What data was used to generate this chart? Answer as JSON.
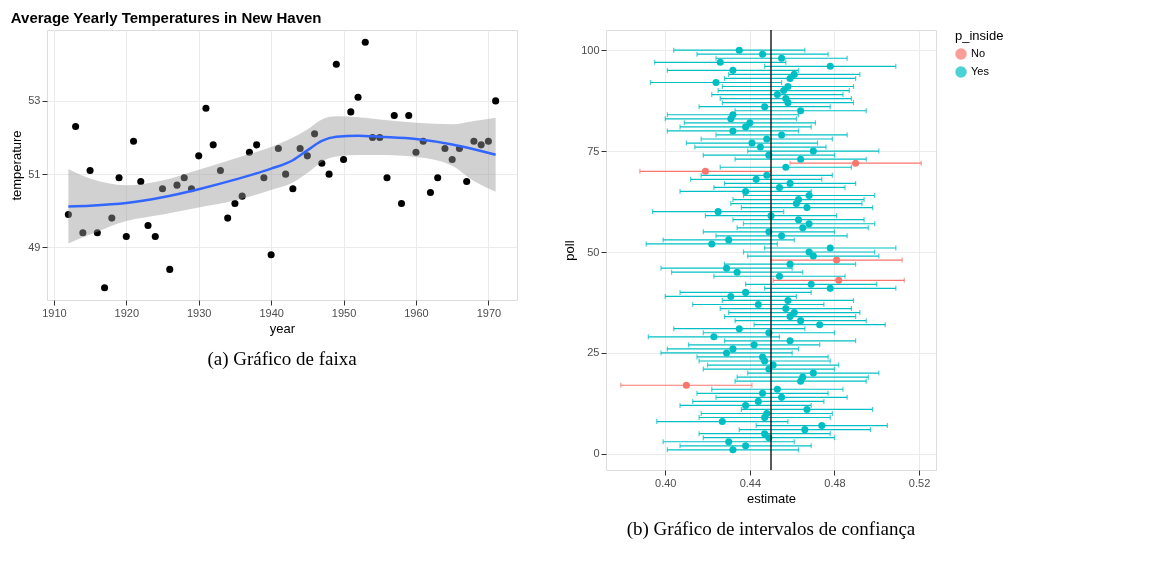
{
  "chart_data": [
    {
      "type": "scatter",
      "title": "Average Yearly Temperatures in New Haven",
      "xlabel": "year",
      "ylabel": "temperature",
      "xlim": [
        1909.05,
        1973.95
      ],
      "ylim": [
        47.565,
        54.935
      ],
      "xticks": [
        1910,
        1920,
        1930,
        1940,
        1950,
        1960,
        1970
      ],
      "yticks": [
        49,
        51,
        53
      ],
      "grid": true,
      "marker": "circle",
      "annotations": [
        "(a) Gráfico de faixa"
      ],
      "series": [
        {
          "type": "scatter",
          "color": "#000000",
          "x": [
            1912,
            1913,
            1914,
            1915,
            1916,
            1917,
            1918,
            1919,
            1920,
            1921,
            1922,
            1923,
            1924,
            1925,
            1926,
            1927,
            1928,
            1929,
            1930,
            1931,
            1932,
            1933,
            1934,
            1935,
            1936,
            1937,
            1938,
            1939,
            1940,
            1941,
            1942,
            1943,
            1944,
            1945,
            1946,
            1947,
            1948,
            1949,
            1950,
            1951,
            1952,
            1953,
            1954,
            1955,
            1956,
            1957,
            1958,
            1959,
            1960,
            1961,
            1962,
            1963,
            1964,
            1965,
            1966,
            1967,
            1968,
            1969,
            1970,
            1971
          ],
          "values": [
            49.9,
            52.3,
            49.4,
            51.1,
            49.4,
            47.9,
            49.8,
            50.9,
            49.3,
            51.9,
            50.8,
            49.6,
            49.3,
            50.6,
            48.4,
            50.7,
            50.9,
            50.6,
            51.5,
            52.8,
            51.8,
            51.1,
            49.8,
            50.2,
            50.4,
            51.6,
            51.8,
            50.9,
            48.8,
            51.7,
            51.0,
            50.6,
            51.7,
            51.5,
            52.1,
            51.3,
            51.0,
            54.0,
            51.4,
            52.7,
            53.1,
            54.6,
            52.0,
            52.0,
            50.9,
            52.6,
            50.2,
            52.6,
            51.6,
            51.9,
            50.5,
            50.9,
            51.7,
            51.4,
            51.7,
            50.8,
            51.9,
            51.8,
            51.9,
            53.0
          ]
        },
        {
          "type": "line",
          "marker": "none",
          "color": "#3366ff",
          "x": [
            1912,
            1915,
            1920,
            1925,
            1930,
            1935,
            1940,
            1943,
            1945,
            1947,
            1949,
            1952,
            1955,
            1960,
            1965,
            1968,
            1971
          ],
          "values": [
            50.12,
            50.14,
            50.21,
            50.37,
            50.59,
            50.85,
            51.15,
            51.38,
            51.65,
            51.91,
            52.02,
            52.05,
            52.02,
            51.96,
            51.81,
            51.68,
            51.53
          ],
          "lower": [
            49.11,
            49.35,
            49.72,
            49.9,
            50.09,
            50.28,
            50.57,
            50.77,
            51.03,
            51.34,
            51.48,
            51.52,
            51.52,
            51.47,
            51.23,
            50.81,
            50.52
          ],
          "upper": [
            51.14,
            50.88,
            50.7,
            50.83,
            51.12,
            51.43,
            51.74,
            52.0,
            52.22,
            52.49,
            52.58,
            52.55,
            52.49,
            52.4,
            52.36,
            52.45,
            52.54
          ]
        }
      ]
    },
    {
      "type": "scatter",
      "xlabel": "estimate",
      "ylabel": "poll",
      "xlim": [
        0.372,
        0.528
      ],
      "ylim": [
        -4,
        105
      ],
      "xticks": [
        {
          "value": 0.4,
          "label": "0.40"
        },
        0.44,
        0.48,
        0.52
      ],
      "yticks": [
        0,
        25,
        50,
        75,
        100
      ],
      "grid": true,
      "marker": "circle",
      "legend": "right",
      "legend_title": "p_inside",
      "annotations": [
        "(b) Gráfico de intervalos de confiança"
      ],
      "ref_lines": [
        {
          "axis": "x",
          "value": 0.45,
          "color": "#000000"
        }
      ],
      "series": [
        {
          "name": "No",
          "color": "#f8766d",
          "x": [
            0.41,
            0.482,
            0.481,
            0.419,
            0.49
          ],
          "values": [
            17,
            43,
            48,
            70,
            72
          ],
          "xerrors": [
            0.031,
            0.031,
            0.031,
            0.031,
            0.031
          ]
        },
        {
          "name": "Yes",
          "color": "#00bfc4",
          "x": [
            0.432,
            0.438,
            0.43,
            0.449,
            0.447,
            0.466,
            0.474,
            0.427,
            0.447,
            0.448,
            0.467,
            0.438,
            0.444,
            0.455,
            0.446,
            0.453,
            0.464,
            0.465,
            0.47,
            0.449,
            0.451,
            0.447,
            0.446,
            0.429,
            0.432,
            0.442,
            0.459,
            0.423,
            0.449,
            0.435,
            0.473,
            0.464,
            0.459,
            0.461,
            0.457,
            0.444,
            0.458,
            0.431,
            0.438,
            0.478,
            0.469,
            0.454,
            0.434,
            0.429,
            0.459,
            0.47,
            0.468,
            0.478,
            0.422,
            0.43,
            0.455,
            0.449,
            0.465,
            0.468,
            0.463,
            0.45,
            0.425,
            0.467,
            0.462,
            0.463,
            0.468,
            0.438,
            0.454,
            0.459,
            0.443,
            0.448,
            0.457,
            0.464,
            0.449,
            0.47,
            0.445,
            0.441,
            0.448,
            0.455,
            0.432,
            0.438,
            0.44,
            0.431,
            0.432,
            0.464,
            0.447,
            0.458,
            0.457,
            0.453,
            0.456,
            0.458,
            0.424,
            0.459,
            0.461,
            0.432,
            0.478,
            0.426,
            0.455,
            0.446,
            0.435
          ],
          "values": [
            1,
            2,
            3,
            4,
            5,
            6,
            7,
            8,
            9,
            10,
            11,
            12,
            13,
            14,
            15,
            16,
            18,
            19,
            20,
            21,
            22,
            23,
            24,
            25,
            26,
            27,
            28,
            29,
            30,
            31,
            32,
            33,
            34,
            35,
            36,
            37,
            38,
            39,
            40,
            41,
            42,
            44,
            45,
            46,
            47,
            49,
            50,
            51,
            52,
            53,
            54,
            55,
            56,
            57,
            58,
            59,
            60,
            61,
            62,
            63,
            64,
            65,
            66,
            67,
            68,
            69,
            71,
            73,
            74,
            75,
            76,
            77,
            78,
            79,
            80,
            81,
            82,
            83,
            84,
            85,
            86,
            87,
            88,
            89,
            90,
            91,
            92,
            93,
            94,
            95,
            96,
            97,
            98,
            99,
            100
          ],
          "xerrors": [
            0.031,
            0.031,
            0.031,
            0.031,
            0.031,
            0.031,
            0.031,
            0.031,
            0.031,
            0.031,
            0.031,
            0.031,
            0.031,
            0.031,
            0.031,
            0.031,
            0.031,
            0.031,
            0.031,
            0.031,
            0.031,
            0.031,
            0.031,
            0.031,
            0.031,
            0.031,
            0.031,
            0.031,
            0.031,
            0.031,
            0.031,
            0.031,
            0.031,
            0.031,
            0.031,
            0.031,
            0.031,
            0.031,
            0.031,
            0.031,
            0.031,
            0.031,
            0.031,
            0.031,
            0.031,
            0.031,
            0.031,
            0.031,
            0.031,
            0.031,
            0.031,
            0.031,
            0.031,
            0.031,
            0.031,
            0.031,
            0.031,
            0.031,
            0.031,
            0.031,
            0.031,
            0.031,
            0.031,
            0.031,
            0.031,
            0.031,
            0.031,
            0.031,
            0.031,
            0.031,
            0.031,
            0.031,
            0.031,
            0.031,
            0.031,
            0.031,
            0.031,
            0.031,
            0.031,
            0.031,
            0.031,
            0.031,
            0.031,
            0.031,
            0.031,
            0.031,
            0.031,
            0.031,
            0.031,
            0.031,
            0.031,
            0.031,
            0.031,
            0.031,
            0.031
          ]
        }
      ]
    }
  ]
}
